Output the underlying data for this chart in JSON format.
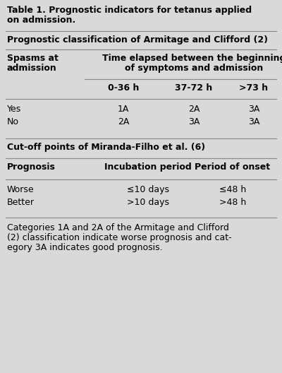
{
  "title_line1": "Table 1. Prognostic indicators for tetanus applied",
  "title_line2": "on admission.",
  "bg_color": "#d9d9d9",
  "text_color": "#000000",
  "figsize": [
    4.0,
    5.28
  ],
  "dpi": 100,
  "section1_header": "Prognostic classification of Armitage and Clifford (2)",
  "col_header_left_line1": "Spasms at",
  "col_header_left_line2": "admission",
  "col_header_right_line1": "Time elapsed between the beginning",
  "col_header_right_line2": "of symptoms and admission",
  "sub_col_headers": [
    "0-36 h",
    "37-72 h",
    ">73 h"
  ],
  "rows_armitage": [
    [
      "Yes",
      "1A",
      "2A",
      "3A"
    ],
    [
      "No",
      "2A",
      "3A",
      "3A"
    ]
  ],
  "section2_header": "Cut-off points of Miranda-Filho et al. (6)",
  "col_headers_miranda": [
    "Prognosis",
    "Incubation period",
    "Period of onset"
  ],
  "rows_miranda": [
    [
      "Worse",
      "≤10 days",
      "≤48 h"
    ],
    [
      "Better",
      ">10 days",
      ">48 h"
    ]
  ],
  "footnote_line1": "Categories 1A and 2A of the Armitage and Clifford",
  "footnote_line2": "(2) classification indicate worse prognosis and cat-",
  "footnote_line3": "egory 3A indicates good prognosis.",
  "line_color": "#888888"
}
